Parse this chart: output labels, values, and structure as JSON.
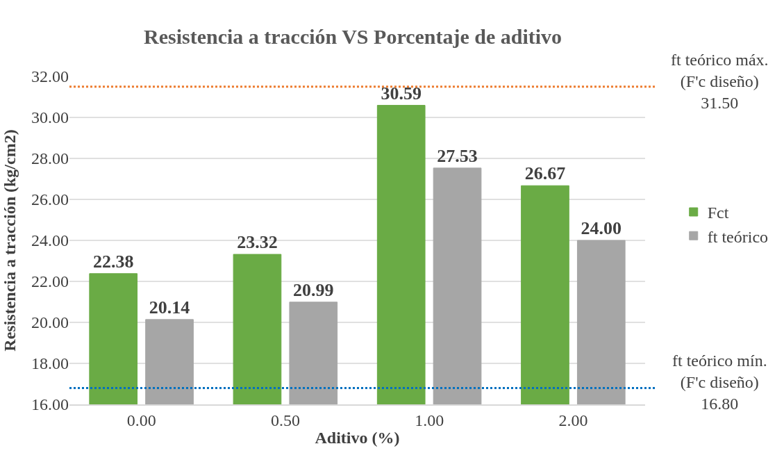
{
  "chart_data": {
    "type": "bar",
    "title": "Resistencia a tracción VS Porcentaje de aditivo",
    "xlabel": "Aditivo (%)",
    "ylabel": "Resistencia a tracción (kg/cm2)",
    "categories": [
      "0.00",
      "0.50",
      "1.00",
      "2.00"
    ],
    "series": [
      {
        "name": "Fct",
        "color": "#6aab45",
        "values": [
          22.38,
          23.32,
          30.59,
          26.67
        ],
        "value_labels": [
          "22.38",
          "23.32",
          "30.59",
          "26.67"
        ]
      },
      {
        "name": "ft teórico",
        "color": "#a6a6a6",
        "values": [
          20.14,
          20.99,
          27.53,
          24.0
        ],
        "value_labels": [
          "20.14",
          "20.99",
          "27.53",
          "24.00"
        ]
      }
    ],
    "ylim": [
      16,
      32
    ],
    "yticks": [
      {
        "value": 16,
        "label": "16.00"
      },
      {
        "value": 18,
        "label": "18.00"
      },
      {
        "value": 20,
        "label": "20.00"
      },
      {
        "value": 22,
        "label": "22.00"
      },
      {
        "value": 24,
        "label": "24.00"
      },
      {
        "value": 26,
        "label": "26.00"
      },
      {
        "value": 28,
        "label": "28.00"
      },
      {
        "value": 30,
        "label": "30.00"
      },
      {
        "value": 32,
        "label": "32.00"
      }
    ],
    "ref_lines": [
      {
        "axis": "y",
        "value": 31.5,
        "label": "ft teórico máx.\n(F'c diseño)\n31.50",
        "color": "#ed7d31",
        "line_style": "dotted"
      },
      {
        "axis": "y",
        "value": 16.8,
        "label": "ft teórico mín.\n(F'c diseño)\n16.80",
        "color": "#0070c0",
        "line_style": "dotted"
      }
    ],
    "grid": "y",
    "legend": "right"
  }
}
